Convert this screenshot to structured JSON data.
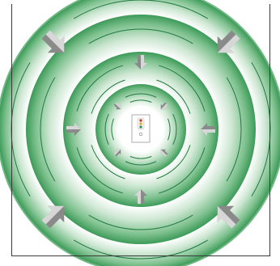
{
  "colors": {
    "background": "#ffffff",
    "green_light": "#d9eedd",
    "green_mid": "#a5d3ae",
    "green_deep": "#3f9e5c",
    "band_white": "#ffffff",
    "ring_line": "#1f7a3f",
    "arrow_light": "#e4e4e4",
    "arrow_dark": "#8a8a8a",
    "frame": "#3a3a3a",
    "device_fill": "#ffffff",
    "device_stroke": "#9a9a9a",
    "led_top": "#c0392b",
    "led_middle": "#e6a817",
    "led_bottom": "#2e8b57"
  },
  "diagram": {
    "concentric_bands": 4,
    "arrow_groups": [
      {
        "ring": "outer",
        "count": 4,
        "pointing": "inward-diagonal"
      },
      {
        "ring": "middle",
        "count": 4,
        "pointing": "inward-orthogonal"
      },
      {
        "ring": "inner",
        "count": 4,
        "pointing": "inward-diagonal"
      }
    ],
    "center_device": {
      "kind": "device-icon",
      "indicator_lights": 3
    }
  }
}
